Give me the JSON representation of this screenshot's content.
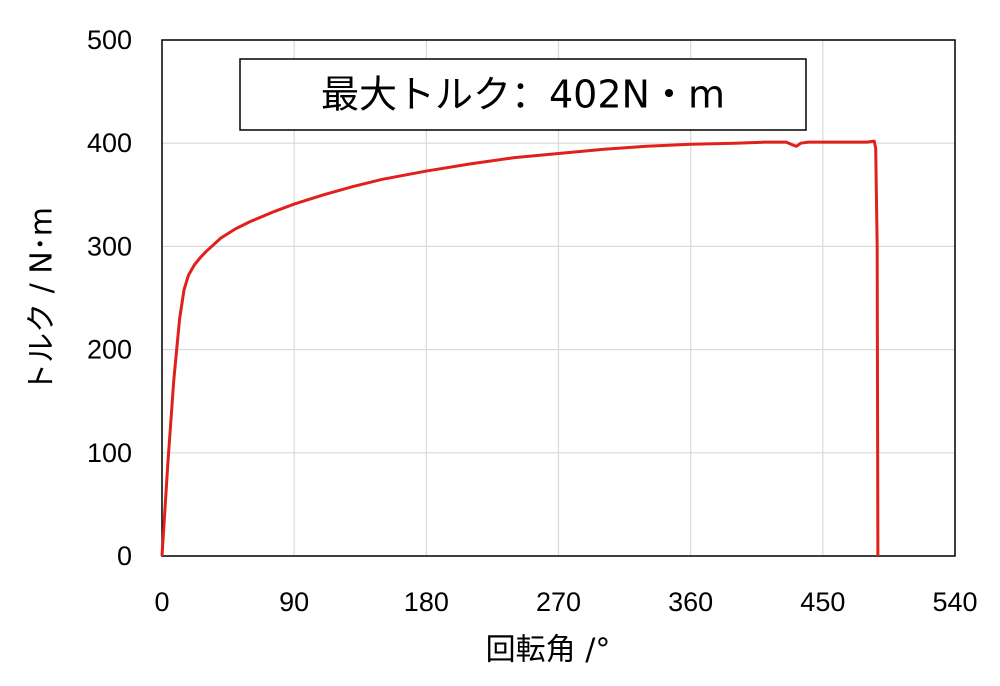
{
  "chart_data": {
    "type": "line",
    "xlabel": "回転角 /°",
    "ylabel": "トルク / N･m",
    "xlim": [
      0,
      540
    ],
    "ylim": [
      0,
      500
    ],
    "xticks": [
      0,
      90,
      180,
      270,
      360,
      450,
      540
    ],
    "yticks": [
      0,
      100,
      200,
      300,
      400,
      500
    ],
    "grid": true,
    "annotation": "最大トルク：402N・m",
    "series": [
      {
        "color": "#e0201c",
        "x": [
          0,
          4,
          8,
          12,
          15,
          18,
          22,
          26,
          30,
          40,
          50,
          60,
          75,
          90,
          110,
          130,
          150,
          180,
          210,
          240,
          270,
          300,
          330,
          360,
          390,
          410,
          425,
          430,
          432,
          435,
          440,
          460,
          480,
          485,
          486,
          487,
          487.5
        ],
        "y": [
          0,
          90,
          170,
          230,
          258,
          272,
          282,
          289,
          295,
          308,
          317,
          324,
          333,
          341,
          350,
          358,
          365,
          373,
          380,
          386,
          390,
          394,
          397,
          399,
          400,
          401,
          401,
          398,
          397,
          400,
          401,
          401,
          401,
          402,
          395,
          300,
          0
        ]
      }
    ]
  }
}
